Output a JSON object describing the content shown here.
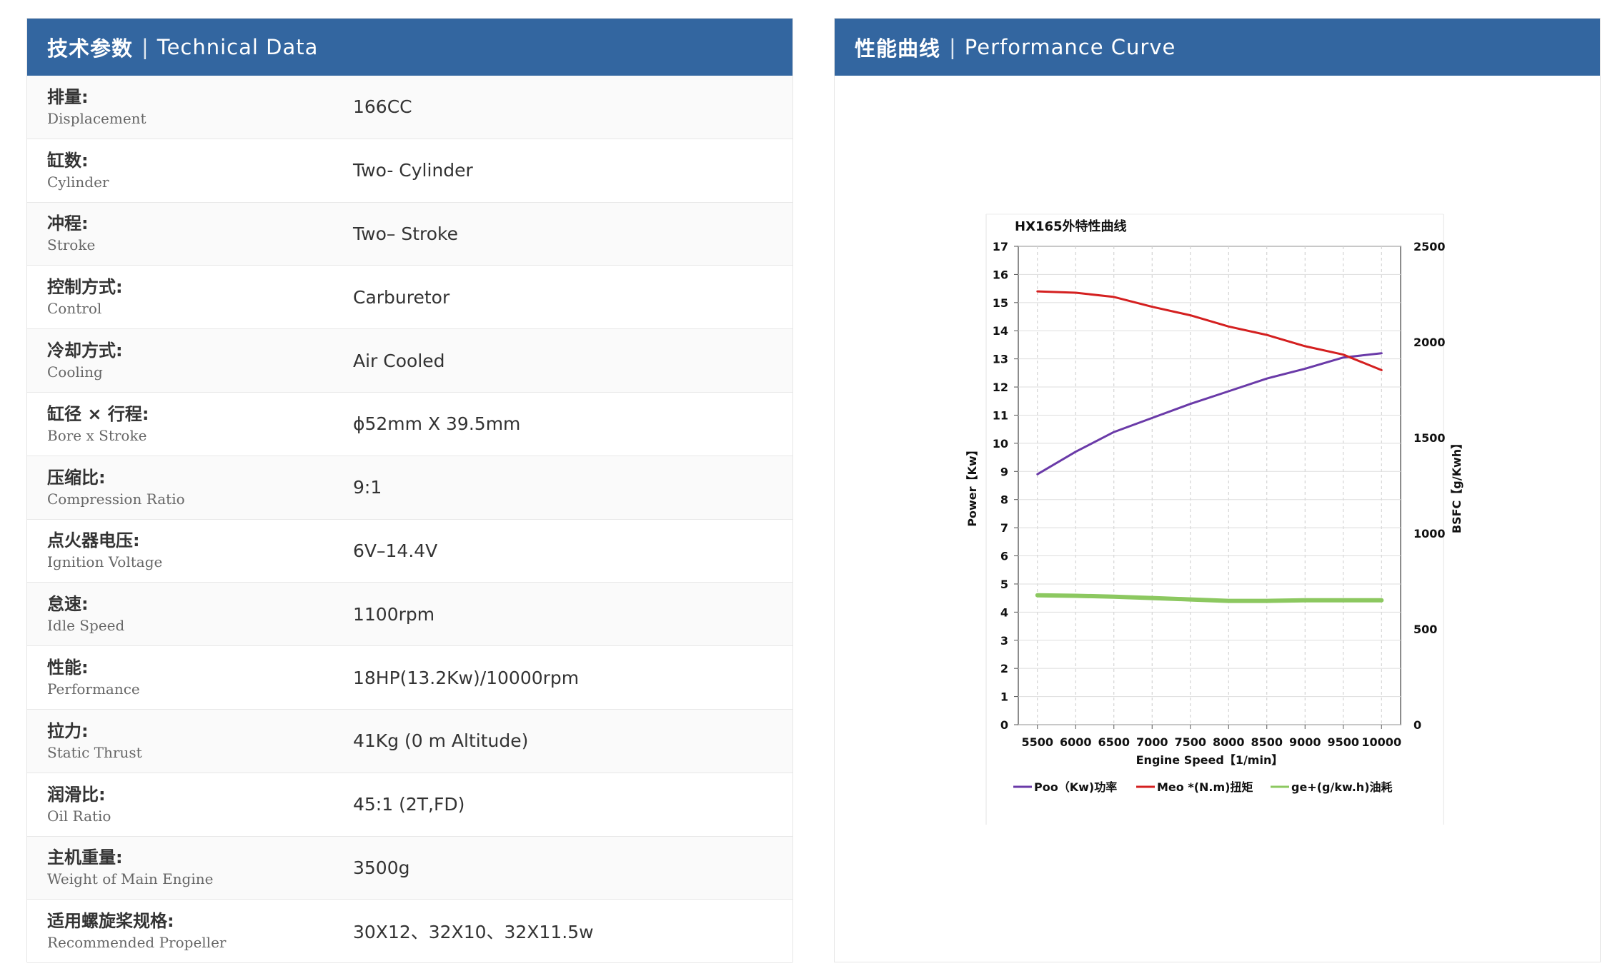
{
  "tech": {
    "header_zh": "技术参数",
    "header_sep": "|",
    "header_en": "Technical Data",
    "rows": [
      {
        "zh": "排量:",
        "en": "Displacement",
        "value": "166CC"
      },
      {
        "zh": "缸数:",
        "en": "Cylinder",
        "value": "Two- Cylinder"
      },
      {
        "zh": "冲程:",
        "en": "Stroke",
        "value": "Two– Stroke"
      },
      {
        "zh": "控制方式:",
        "en": "Control",
        "value": "Carburetor"
      },
      {
        "zh": "冷却方式:",
        "en": "Cooling",
        "value": "Air Cooled"
      },
      {
        "zh": "缸径 × 行程:",
        "en": "Bore x Stroke",
        "value": "ϕ52mm X 39.5mm"
      },
      {
        "zh": "压缩比:",
        "en": "Compression Ratio",
        "value": "9:1"
      },
      {
        "zh": "点火器电压:",
        "en": "Ignition Voltage",
        "value": "6V–14.4V"
      },
      {
        "zh": "怠速:",
        "en": "Idle Speed",
        "value": "1100rpm"
      },
      {
        "zh": "性能:",
        "en": "Performance",
        "value": "18HP(13.2Kw)/10000rpm"
      },
      {
        "zh": "拉力:",
        "en": "Static Thrust",
        "value": "41Kg (0 m Altitude)"
      },
      {
        "zh": "润滑比:",
        "en": "Oil Ratio",
        "value": "45:1 (2T,FD)"
      },
      {
        "zh": "主机重量:",
        "en": "Weight of Main Engine",
        "value": "3500g"
      },
      {
        "zh": "适用螺旋桨规格:",
        "en": "Recommended Propeller",
        "value": "30X12、32X10、32X11.5w"
      }
    ]
  },
  "perf": {
    "header_zh": "性能曲线",
    "header_sep": "|",
    "header_en": "Performance Curve"
  },
  "chart_data": {
    "type": "line",
    "title": "HX165外特性曲线",
    "xlabel": "Engine Speed【1/min】",
    "ylabel_left": "Power【Kw】",
    "ylabel_right": "BSFC【g/Kwh】",
    "x": [
      5500,
      6000,
      6500,
      7000,
      7500,
      8000,
      8500,
      9000,
      9500,
      10000
    ],
    "x_ticks": [
      5500,
      6000,
      6500,
      7000,
      7500,
      8000,
      8500,
      9000,
      9500,
      10000
    ],
    "xlim": [
      5250,
      10250
    ],
    "ylim_left": [
      0,
      17
    ],
    "y_ticks_left": [
      0,
      1,
      2,
      3,
      4,
      5,
      6,
      7,
      8,
      9,
      10,
      11,
      12,
      13,
      14,
      15,
      16,
      17
    ],
    "ylim_right": [
      0,
      2500
    ],
    "y_ticks_right": [
      0,
      500,
      1000,
      1500,
      2000,
      2500
    ],
    "grid": true,
    "legend_position": "bottom",
    "series": [
      {
        "name": "Poo（Kw)功率",
        "color": "#6a3aa8",
        "width": 3,
        "values": [
          8.9,
          9.7,
          10.4,
          10.9,
          11.4,
          11.85,
          12.3,
          12.65,
          13.05,
          13.2
        ]
      },
      {
        "name": "Meo *(N.m)扭矩",
        "color": "#d42020",
        "width": 3,
        "values": [
          15.4,
          15.35,
          15.2,
          14.85,
          14.55,
          14.15,
          13.85,
          13.45,
          13.15,
          12.6
        ]
      },
      {
        "name": "ge+(g/kw.h)油耗",
        "color": "#8cc860",
        "width": 6,
        "values": [
          4.6,
          4.58,
          4.55,
          4.5,
          4.45,
          4.4,
          4.4,
          4.42,
          4.42,
          4.42
        ]
      }
    ]
  }
}
